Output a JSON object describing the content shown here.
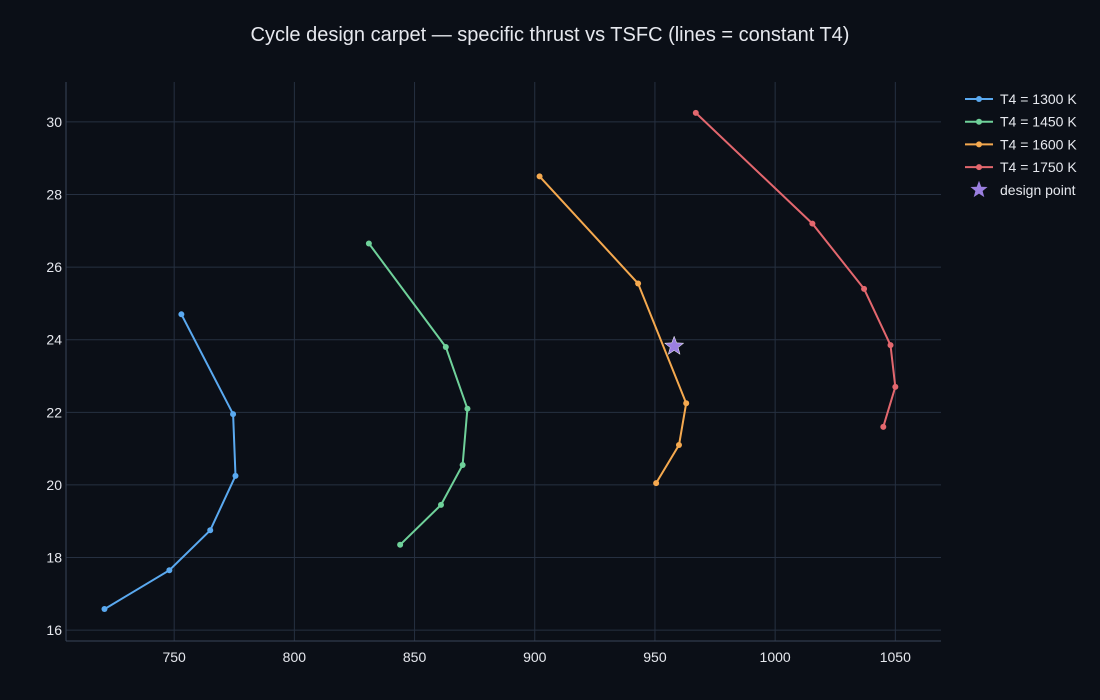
{
  "chart_data": {
    "type": "line",
    "title": "Cycle design carpet — specific thrust vs TSFC (lines = constant T4)",
    "xlabel": "",
    "ylabel": "",
    "xlim": [
      705,
      1069
    ],
    "ylim": [
      15.7,
      31.1
    ],
    "x_ticks": [
      750,
      800,
      850,
      900,
      950,
      1000,
      1050
    ],
    "y_ticks": [
      16,
      18,
      20,
      22,
      24,
      26,
      28,
      30
    ],
    "grid": true,
    "legend_position": "top-right",
    "series": [
      {
        "name": "T4 = 1300 K",
        "color": "#5aa9f0",
        "points": [
          [
            753,
            24.7
          ],
          [
            774.5,
            21.95
          ],
          [
            775.5,
            20.25
          ],
          [
            765,
            18.75
          ],
          [
            748,
            17.65
          ],
          [
            721,
            16.58
          ]
        ]
      },
      {
        "name": "T4 = 1450 K",
        "color": "#6fd19a",
        "points": [
          [
            831,
            26.65
          ],
          [
            863,
            23.8
          ],
          [
            872,
            22.1
          ],
          [
            870,
            20.55
          ],
          [
            861,
            19.45
          ],
          [
            844,
            18.35
          ]
        ]
      },
      {
        "name": "T4 = 1600 K",
        "color": "#f5a94f",
        "points": [
          [
            902,
            28.5
          ],
          [
            943,
            25.55
          ],
          [
            963,
            22.25
          ],
          [
            960,
            21.1
          ],
          [
            950.5,
            20.05
          ]
        ]
      },
      {
        "name": "T4 = 1750 K",
        "color": "#e3676e",
        "points": [
          [
            967,
            30.25
          ],
          [
            1015.5,
            27.2
          ],
          [
            1037,
            25.4
          ],
          [
            1048,
            23.85
          ],
          [
            1050,
            22.7
          ],
          [
            1045,
            21.6
          ]
        ]
      }
    ],
    "design_point": {
      "name": "design point",
      "color": "#9b7fe0",
      "x": 958,
      "y": 23.82
    }
  }
}
